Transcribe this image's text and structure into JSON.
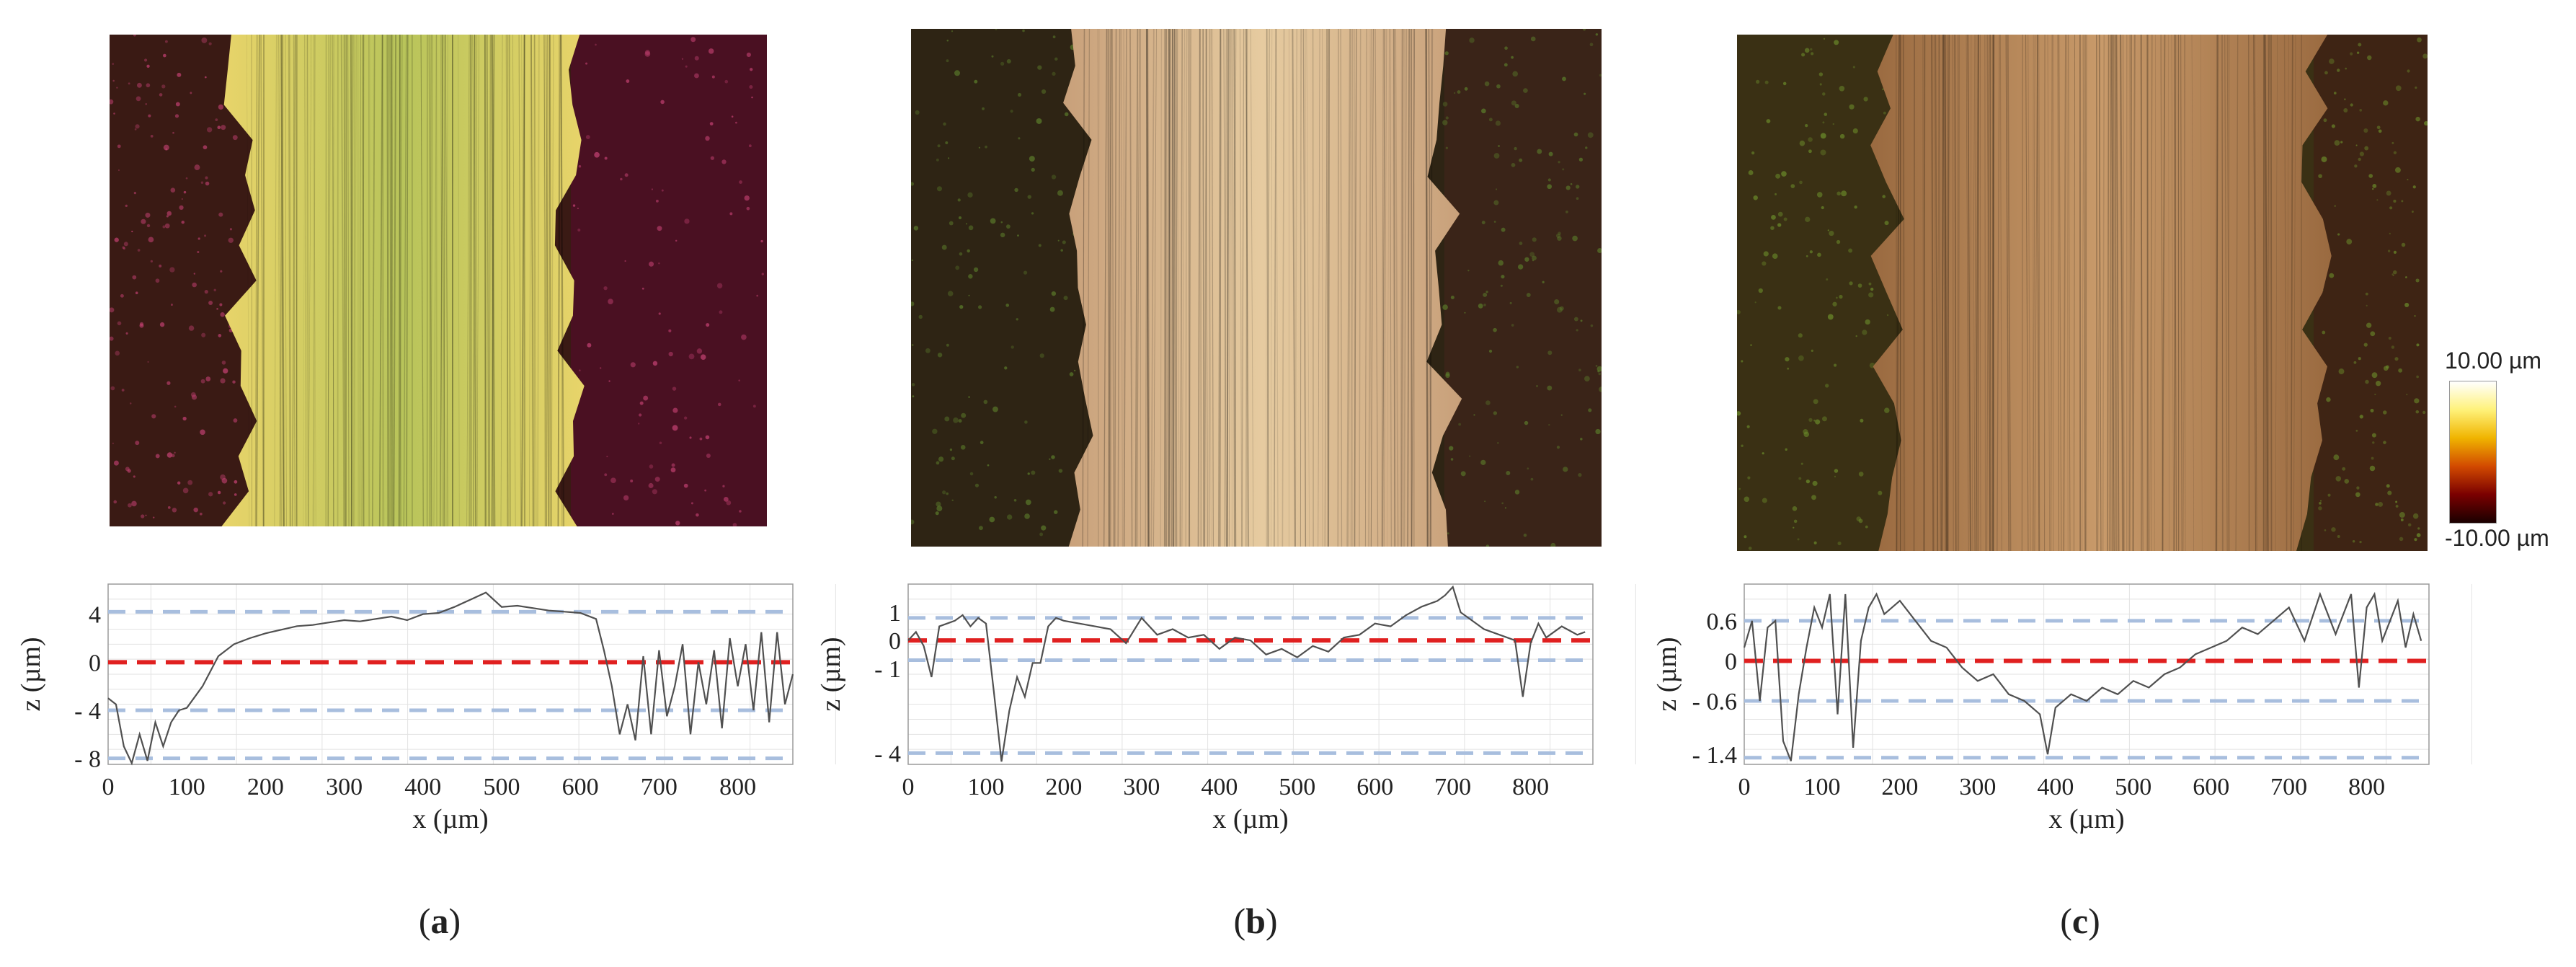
{
  "figure": {
    "colorbar": {
      "max_label": "10.00 µm",
      "min_label": "-10.00 µm",
      "colors": [
        "#ffffff",
        "#fff27a",
        "#f0b400",
        "#d24a00",
        "#7a0000",
        "#1a0000"
      ]
    },
    "panels": [
      {
        "caption_open": "(",
        "caption_letter": "a",
        "caption_close": ")",
        "image_palette": {
          "left": "#3a1a14",
          "track_a": "#e8d46a",
          "track_b": "#b8c45a",
          "right": "#4a1022",
          "speck": "#c04070"
        },
        "chart_data": {
          "type": "line",
          "xlabel": "x (µm)",
          "ylabel": "z (µm)",
          "xlim": [
            0,
            870
          ],
          "ylim": [
            -8.5,
            6.5
          ],
          "x_ticks": [
            0,
            100,
            200,
            300,
            400,
            500,
            600,
            700,
            800
          ],
          "y_ticks": [
            {
              "v": 4,
              "label": "4"
            },
            {
              "v": 0,
              "label": "0"
            },
            {
              "v": -4,
              "label": "- 4"
            },
            {
              "v": -8,
              "label": "- 8"
            }
          ],
          "reference_lines": {
            "mean": 0,
            "dashed_blue": [
              4.2,
              -4.0,
              -8.0
            ]
          },
          "series": [
            {
              "x": [
                0,
                10,
                20,
                30,
                40,
                50,
                60,
                70,
                80,
                90,
                100,
                120,
                140,
                160,
                180,
                200,
                220,
                240,
                260,
                280,
                300,
                320,
                340,
                360,
                380,
                400,
                420,
                440,
                460,
                480,
                500,
                520,
                540,
                560,
                580,
                600,
                620,
                630,
                640,
                650,
                660,
                670,
                680,
                690,
                700,
                710,
                720,
                730,
                740,
                750,
                760,
                770,
                780,
                790,
                800,
                810,
                820,
                830,
                840,
                850,
                860,
                870
              ],
              "y": [
                -3,
                -3.5,
                -7,
                -8.4,
                -6,
                -8.2,
                -5,
                -7,
                -5,
                -4,
                -3.8,
                -2,
                0.5,
                1.5,
                2,
                2.4,
                2.7,
                3,
                3.1,
                3.3,
                3.5,
                3.4,
                3.6,
                3.8,
                3.5,
                4,
                4.1,
                4.6,
                5.2,
                5.8,
                4.6,
                4.7,
                4.5,
                4.3,
                4.2,
                4.1,
                3.6,
                1,
                -2,
                -6,
                -3.5,
                -6.5,
                0.5,
                -6,
                1,
                -4.5,
                -2,
                1.5,
                -6,
                0,
                -3.5,
                1,
                -5.5,
                2,
                -2,
                1.5,
                -4,
                2.5,
                -5,
                2.5,
                -3.5,
                -1
              ]
            }
          ]
        }
      },
      {
        "caption_open": "(",
        "caption_letter": "b",
        "caption_close": ")",
        "image_palette": {
          "left": "#2e2414",
          "track_a": "#c8a07a",
          "track_b": "#e6cba0",
          "right": "#3a2418",
          "speck": "#5a7a2a"
        },
        "chart_data": {
          "type": "line",
          "xlabel": "x (µm)",
          "ylabel": "z (µm)",
          "xlim": [
            0,
            880
          ],
          "ylim": [
            -4.4,
            2.0
          ],
          "x_ticks": [
            0,
            100,
            200,
            300,
            400,
            500,
            600,
            700,
            800
          ],
          "y_ticks": [
            {
              "v": 1,
              "label": "1"
            },
            {
              "v": 0,
              "label": "0"
            },
            {
              "v": -1,
              "label": "- 1"
            },
            {
              "v": -4,
              "label": "- 4"
            }
          ],
          "reference_lines": {
            "mean": 0,
            "dashed_blue": [
              0.8,
              -0.7,
              -4.0
            ]
          },
          "series": [
            {
              "x": [
                0,
                10,
                20,
                30,
                40,
                50,
                60,
                70,
                80,
                90,
                100,
                110,
                120,
                130,
                140,
                150,
                160,
                170,
                180,
                190,
                200,
                220,
                240,
                260,
                280,
                300,
                320,
                340,
                360,
                380,
                400,
                420,
                440,
                460,
                480,
                500,
                520,
                540,
                560,
                580,
                600,
                620,
                640,
                660,
                680,
                690,
                700,
                710,
                720,
                740,
                760,
                780,
                790,
                800,
                810,
                820,
                840,
                860,
                870
              ],
              "y": [
                0,
                0.3,
                -0.2,
                -1.3,
                0.5,
                0.6,
                0.7,
                0.9,
                0.5,
                0.8,
                0.6,
                -1.8,
                -4.3,
                -2.5,
                -1.3,
                -2,
                -0.8,
                -0.8,
                0.5,
                0.8,
                0.7,
                0.6,
                0.5,
                0.4,
                -0.1,
                0.8,
                0.2,
                0.4,
                0.1,
                0.2,
                -0.3,
                0.1,
                0,
                -0.5,
                -0.3,
                -0.6,
                -0.2,
                -0.4,
                0.1,
                0.2,
                0.6,
                0.5,
                0.9,
                1.2,
                1.4,
                1.6,
                1.9,
                1,
                0.8,
                0.4,
                0.2,
                0,
                -2,
                -0.1,
                0.6,
                0.1,
                0.5,
                0.2,
                0.3
              ]
            }
          ]
        }
      },
      {
        "caption_open": "(",
        "caption_letter": "c",
        "caption_close": ")",
        "image_palette": {
          "left": "#3a3014",
          "track_a": "#9a6a40",
          "track_b": "#c89a6a",
          "right": "#3e2414",
          "speck": "#6a8a2a"
        },
        "chart_data": {
          "type": "line",
          "xlabel": "x (µm)",
          "ylabel": "z (µm)",
          "xlim": [
            0,
            880
          ],
          "ylim": [
            -1.55,
            1.15
          ],
          "x_ticks": [
            0,
            100,
            200,
            300,
            400,
            500,
            600,
            700,
            800
          ],
          "y_ticks": [
            {
              "v": 0.6,
              "label": "0.6"
            },
            {
              "v": 0,
              "label": "0"
            },
            {
              "v": -0.6,
              "label": "- 0.6"
            },
            {
              "v": -1.4,
              "label": "- 1.4"
            }
          ],
          "reference_lines": {
            "mean": 0,
            "dashed_blue": [
              0.6,
              -0.6,
              -1.45
            ]
          },
          "series": [
            {
              "x": [
                0,
                10,
                20,
                30,
                40,
                50,
                60,
                70,
                80,
                90,
                100,
                110,
                120,
                130,
                140,
                150,
                160,
                170,
                180,
                200,
                220,
                240,
                260,
                280,
                300,
                320,
                340,
                360,
                380,
                390,
                400,
                420,
                440,
                460,
                480,
                500,
                520,
                540,
                560,
                580,
                600,
                620,
                640,
                660,
                680,
                700,
                720,
                740,
                760,
                780,
                790,
                800,
                810,
                820,
                840,
                850,
                860,
                870
              ],
              "y": [
                0.2,
                0.6,
                -0.6,
                0.5,
                0.6,
                -1.2,
                -1.5,
                -0.5,
                0.2,
                0.8,
                0.5,
                1.0,
                -0.8,
                1.0,
                -1.3,
                0.3,
                0.8,
                1.0,
                0.7,
                0.9,
                0.6,
                0.3,
                0.2,
                -0.1,
                -0.3,
                -0.2,
                -0.5,
                -0.6,
                -0.8,
                -1.4,
                -0.7,
                -0.5,
                -0.6,
                -0.4,
                -0.5,
                -0.3,
                -0.4,
                -0.2,
                -0.1,
                0.1,
                0.2,
                0.3,
                0.5,
                0.4,
                0.6,
                0.8,
                0.3,
                1.0,
                0.4,
                1.0,
                -0.4,
                0.8,
                1.0,
                0.3,
                0.9,
                0.2,
                0.7,
                0.3
              ]
            }
          ]
        }
      }
    ]
  }
}
